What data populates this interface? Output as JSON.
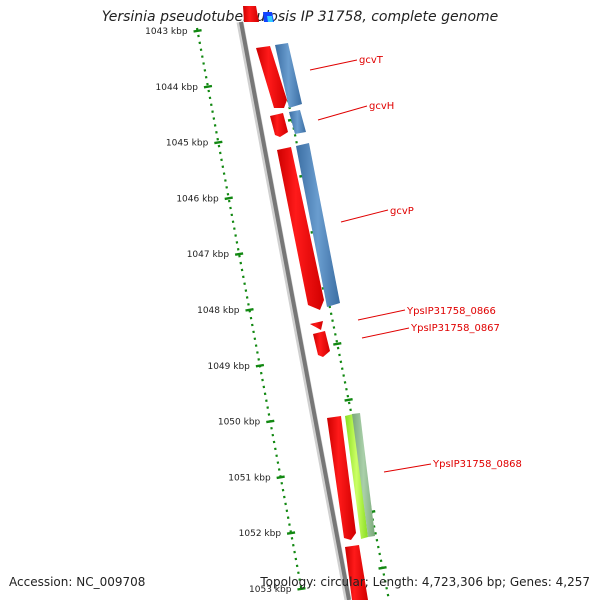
{
  "title": "Yersinia pseudotuberculosis IP 31758, complete genome",
  "footer": {
    "accession": "Accession: NC_009708",
    "stats": "Topology: circular; Length: 4,723,306 bp; Genes: 4,257"
  },
  "scale": {
    "unit": "kbp",
    "ticks": [
      "1043 kbp",
      "1044 kbp",
      "1045 kbp",
      "1046 kbp",
      "1047 kbp",
      "1048 kbp",
      "1049 kbp",
      "1050 kbp",
      "1051 kbp",
      "1052 kbp",
      "1053 kbp"
    ]
  },
  "genes": [
    {
      "name": "gcvT",
      "start_kbp": 1043.25,
      "end_kbp": 1044.35,
      "strand": "-"
    },
    {
      "name": "gcvH",
      "start_kbp": 1044.45,
      "end_kbp": 1044.85,
      "strand": "-"
    },
    {
      "name": "gcvP",
      "start_kbp": 1044.95,
      "end_kbp": 1047.95,
      "strand": "-"
    },
    {
      "name": "YpsIP31758_0866",
      "start_kbp": 1048.2,
      "end_kbp": 1048.3,
      "strand": "-"
    },
    {
      "name": "YpsIP31758_0867",
      "start_kbp": 1048.45,
      "end_kbp": 1048.85,
      "strand": "-"
    },
    {
      "name": "YpsIP31758_0868",
      "start_kbp": 1049.9,
      "end_kbp": 1052.1,
      "strand": "-"
    }
  ],
  "colors": {
    "cds": "#ff0000",
    "cds_dark": "#bb0000",
    "gene_blue": "#4a7fb5",
    "gene_green": "#99ee33",
    "gene_grey_green": "#88b888",
    "backbone": "#777777",
    "tick_green": "#118811",
    "label_red": "#e00000"
  }
}
